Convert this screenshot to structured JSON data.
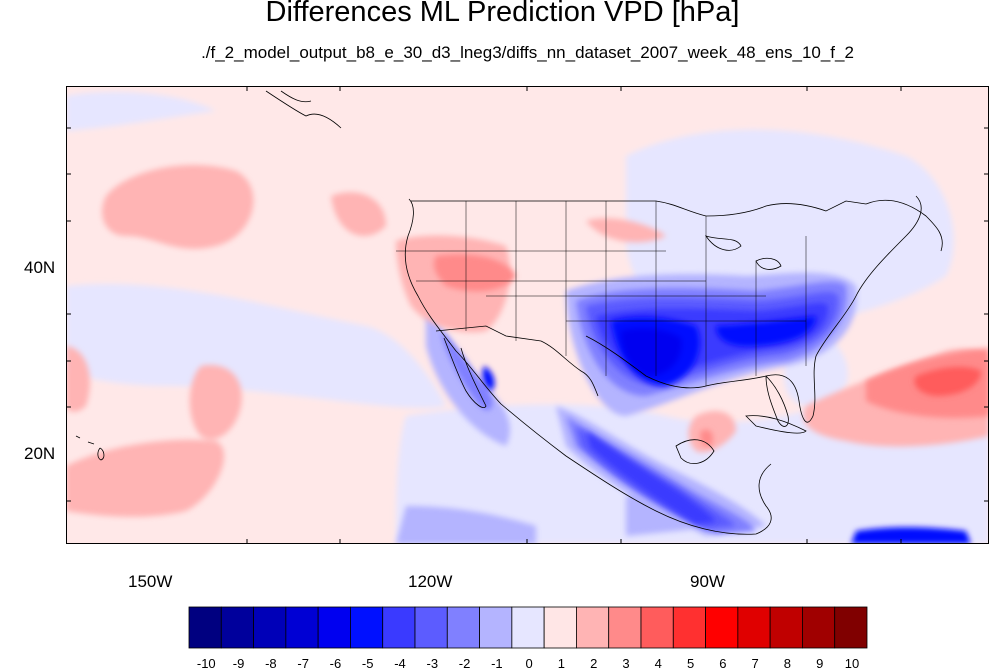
{
  "title": "Differences ML Prediction VPD [hPa]",
  "subtitle": "./f_2_model_output_b8_e_30_d3_lneg3/diffs_nn_dataset_2007_week_48_ens_10_f_2",
  "lat_labels": [
    "40N",
    "20N"
  ],
  "lon_labels": [
    "150W",
    "120W",
    "90W"
  ],
  "colorbar": {
    "labels": [
      "-10",
      "-9",
      "-8",
      "-7",
      "-6",
      "-5",
      "-4",
      "-3",
      "-2",
      "-1",
      "0",
      "1",
      "2",
      "3",
      "4",
      "5",
      "6",
      "7",
      "8",
      "9",
      "10"
    ],
    "colors": [
      "#000080",
      "#00009c",
      "#0000b8",
      "#0000d4",
      "#0000f0",
      "#0010ff",
      "#3a3aff",
      "#5c5cff",
      "#8080ff",
      "#b4b4ff",
      "#e6e6ff",
      "#ffe6e6",
      "#ffb4b4",
      "#ff8a8a",
      "#ff5c5c",
      "#ff3030",
      "#ff0000",
      "#e00000",
      "#c00000",
      "#a00000",
      "#800000"
    ]
  }
}
